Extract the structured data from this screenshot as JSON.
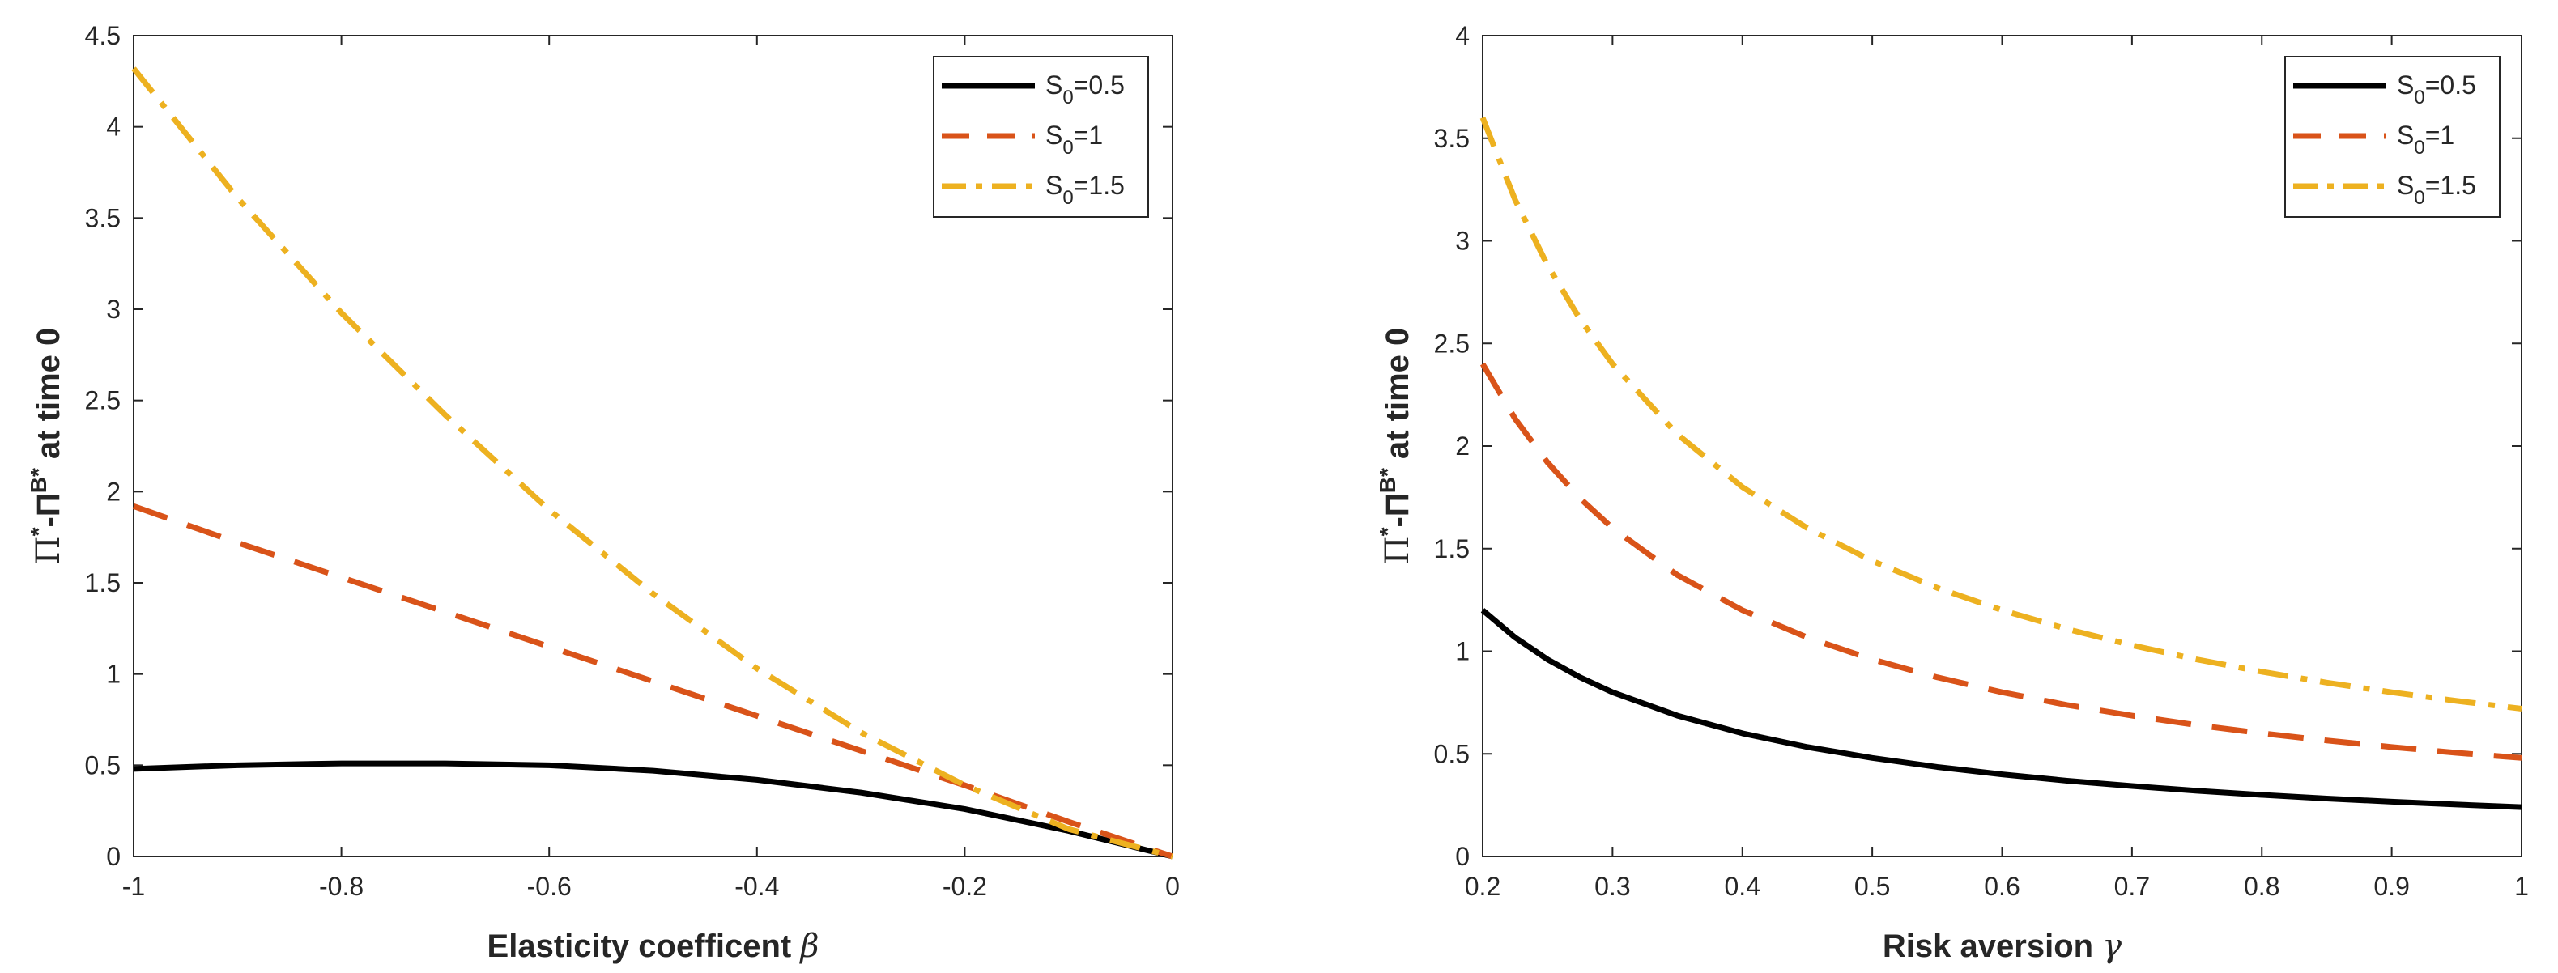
{
  "chart_data": [
    {
      "type": "line",
      "xlabel": "Elasticity coefficent",
      "xlabel_symbol": "β",
      "ylabel": {
        "pi": "Π",
        "star": "*",
        "minus": "-Π",
        "b": "B",
        "tail": "*",
        "rest": " at time 0"
      },
      "xlim": [
        -1,
        0
      ],
      "ylim": [
        0,
        4.5
      ],
      "xticks": [
        "-1",
        "-0.8",
        "-0.6",
        "-0.4",
        "-0.2",
        "0"
      ],
      "yticks": [
        "0",
        "0.5",
        "1",
        "1.5",
        "2",
        "2.5",
        "3",
        "3.5",
        "4",
        "4.5"
      ],
      "x": [
        -1,
        -0.9,
        -0.8,
        -0.7,
        -0.6,
        -0.5,
        -0.4,
        -0.3,
        -0.2,
        -0.1,
        0
      ],
      "series": [
        {
          "name": "S0=0.5",
          "label_main": "S",
          "label_sub": "0",
          "label_rest": "=0.5",
          "color": "#000000",
          "style": "solid",
          "values": [
            0.48,
            0.5,
            0.51,
            0.51,
            0.5,
            0.47,
            0.42,
            0.35,
            0.26,
            0.14,
            0
          ]
        },
        {
          "name": "S0=1",
          "label_main": "S",
          "label_sub": "0",
          "label_rest": "=1",
          "color": "#D95319",
          "style": "dashed",
          "values": [
            1.92,
            1.72,
            1.53,
            1.34,
            1.15,
            0.96,
            0.77,
            0.58,
            0.39,
            0.19,
            0
          ]
        },
        {
          "name": "S0=1.5",
          "label_main": "S",
          "label_sub": "0",
          "label_rest": "=1.5",
          "color": "#EDB120",
          "style": "dashdot",
          "values": [
            4.32,
            3.61,
            2.98,
            2.42,
            1.9,
            1.44,
            1.03,
            0.68,
            0.39,
            0.15,
            0
          ]
        }
      ]
    },
    {
      "type": "line",
      "xlabel": "Risk aversion",
      "xlabel_symbol": "γ",
      "ylabel": {
        "pi": "Π",
        "star": "*",
        "minus": "-Π",
        "b": "B",
        "tail": "*",
        "rest": " at time 0"
      },
      "xlim": [
        0.2,
        1
      ],
      "ylim": [
        0,
        4
      ],
      "xticks": [
        "0.2",
        "0.3",
        "0.4",
        "0.5",
        "0.6",
        "0.7",
        "0.8",
        "0.9",
        "1"
      ],
      "yticks": [
        "0",
        "0.5",
        "1",
        "1.5",
        "2",
        "2.5",
        "3",
        "3.5",
        "4"
      ],
      "x": [
        0.2,
        0.225,
        0.25,
        0.275,
        0.3,
        0.35,
        0.4,
        0.45,
        0.5,
        0.55,
        0.6,
        0.65,
        0.7,
        0.75,
        0.8,
        0.85,
        0.9,
        0.95,
        1.0
      ],
      "series": [
        {
          "name": "S0=0.5",
          "label_main": "S",
          "label_sub": "0",
          "label_rest": "=0.5",
          "color": "#000000",
          "style": "solid",
          "values": [
            1.2,
            1.067,
            0.96,
            0.873,
            0.8,
            0.686,
            0.6,
            0.533,
            0.48,
            0.436,
            0.4,
            0.369,
            0.343,
            0.32,
            0.3,
            0.282,
            0.267,
            0.253,
            0.24
          ]
        },
        {
          "name": "S0=1",
          "label_main": "S",
          "label_sub": "0",
          "label_rest": "=1",
          "color": "#D95319",
          "style": "dashed",
          "values": [
            2.4,
            2.133,
            1.92,
            1.745,
            1.6,
            1.371,
            1.2,
            1.067,
            0.96,
            0.873,
            0.8,
            0.738,
            0.686,
            0.64,
            0.6,
            0.565,
            0.533,
            0.505,
            0.48
          ]
        },
        {
          "name": "S0=1.5",
          "label_main": "S",
          "label_sub": "0",
          "label_rest": "=1.5",
          "color": "#EDB120",
          "style": "dashdot",
          "values": [
            3.6,
            3.2,
            2.88,
            2.618,
            2.4,
            2.057,
            1.8,
            1.6,
            1.44,
            1.309,
            1.2,
            1.108,
            1.029,
            0.96,
            0.9,
            0.847,
            0.8,
            0.758,
            0.72
          ]
        }
      ]
    }
  ]
}
